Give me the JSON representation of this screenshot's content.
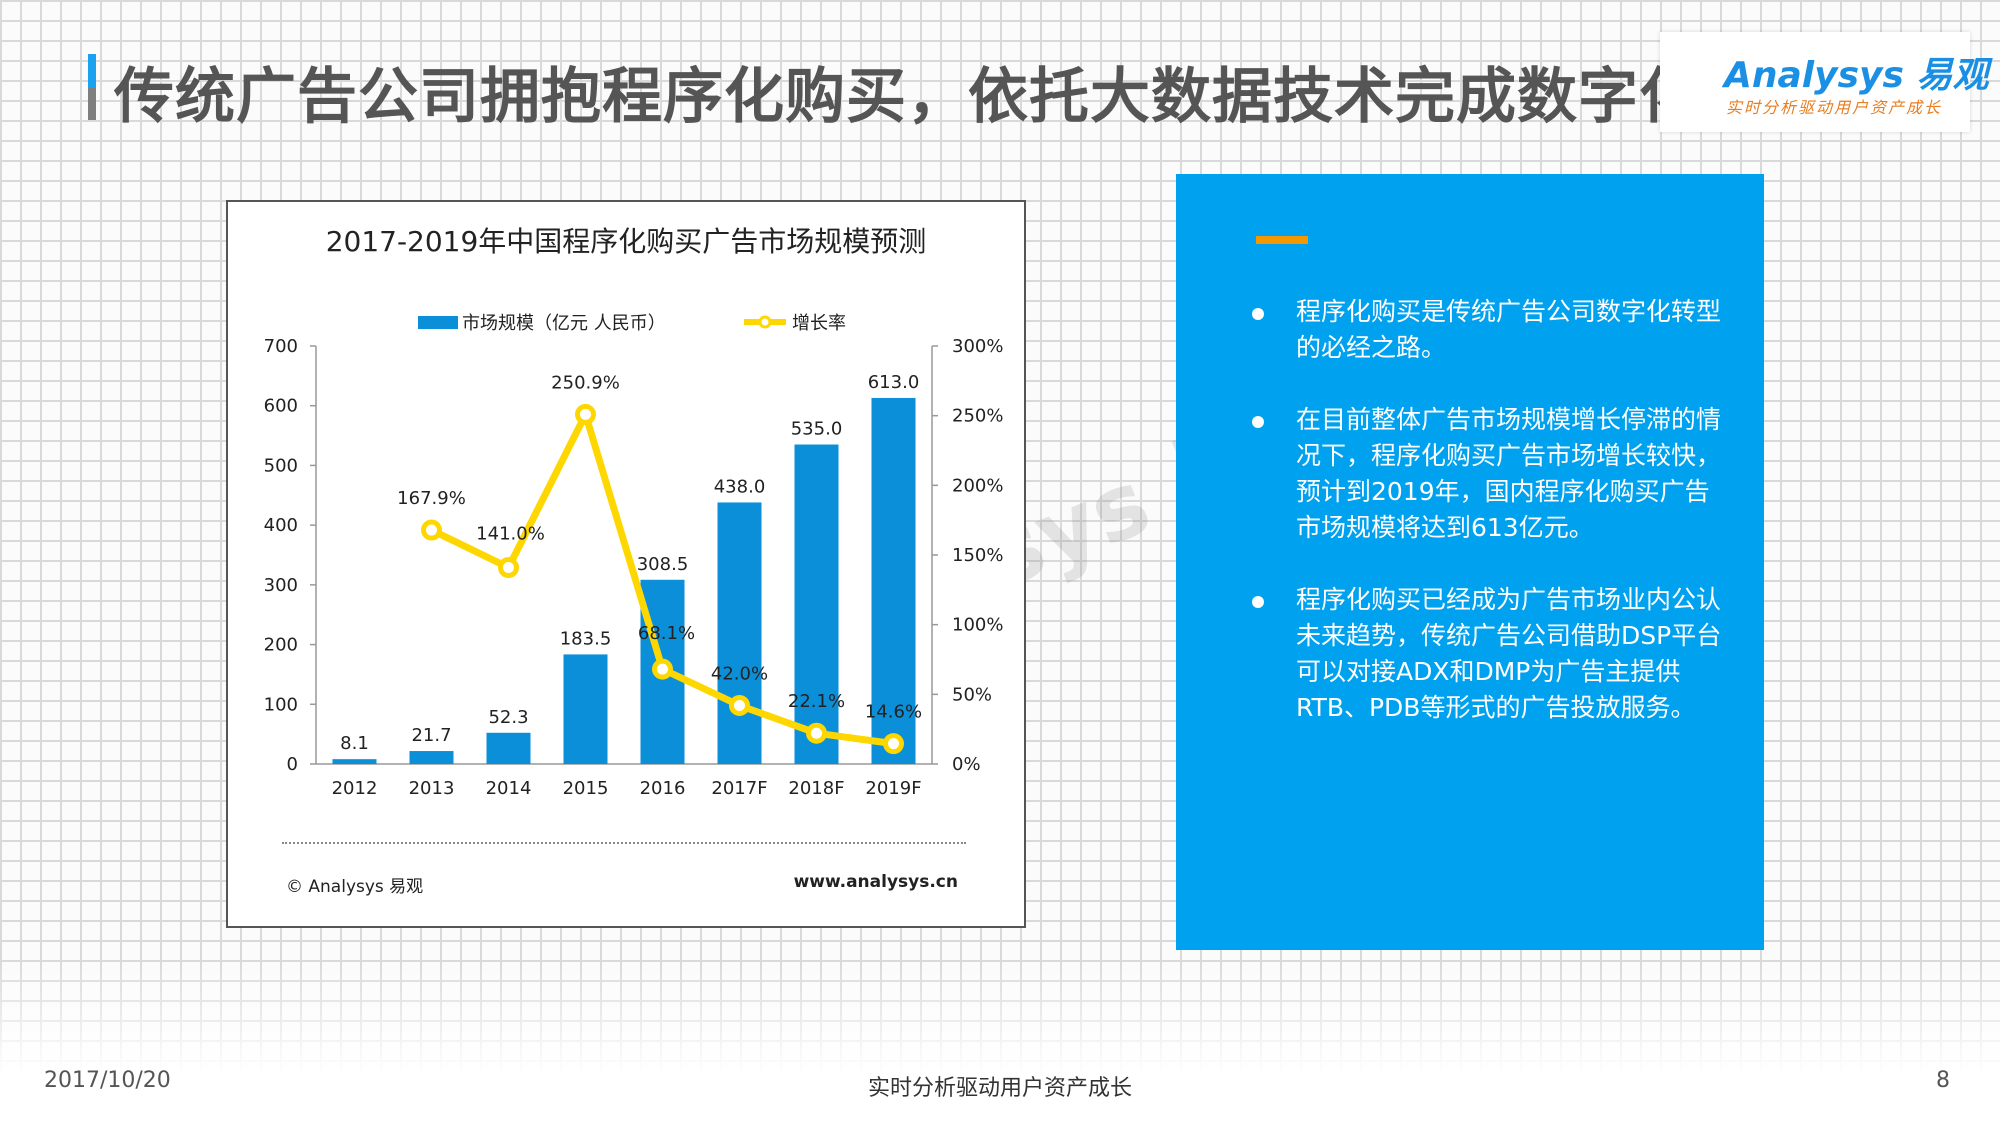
{
  "header": {
    "title": "传统广告公司拥抱程序化购买，依托大数据技术完成数字化转型",
    "logo_text": "Analysys 易观",
    "logo_tagline": "实时分析驱动用户资产成长"
  },
  "chart_data": {
    "type": "bar",
    "title": "2017-2019年中国程序化购买广告市场规模预测",
    "categories": [
      "2012",
      "2013",
      "2014",
      "2015",
      "2016",
      "2017F",
      "2018F",
      "2019F"
    ],
    "series": [
      {
        "name": "市场规模（亿元 人民币）",
        "type": "bar",
        "axis": "left",
        "values": [
          8.1,
          21.7,
          52.3,
          183.5,
          308.5,
          438.0,
          535.0,
          613.0
        ],
        "labels": [
          "8.1",
          "21.7",
          "52.3",
          "183.5",
          "308.5",
          "438.0",
          "535.0",
          "613.0"
        ],
        "color": "#0b8fd9"
      },
      {
        "name": "增长率",
        "type": "line",
        "axis": "right",
        "values": [
          null,
          167.9,
          141.0,
          250.9,
          68.1,
          42.0,
          22.1,
          14.6
        ],
        "labels": [
          "",
          "167.9%",
          "141.0%",
          "250.9%",
          "68.1%",
          "42.0%",
          "22.1%",
          "14.6%"
        ],
        "color": "#ffd700"
      }
    ],
    "ylim_left": [
      0,
      700
    ],
    "yticks_left": [
      "0",
      "100",
      "200",
      "300",
      "400",
      "500",
      "600",
      "700"
    ],
    "ylim_right": [
      0,
      300
    ],
    "yticks_right": [
      "0%",
      "50%",
      "100%",
      "150%",
      "200%",
      "250%",
      "300%"
    ],
    "legend_position": "top",
    "grid": false,
    "copyright": "© Analysys 易观",
    "website": "www.analysys.cn"
  },
  "panel": {
    "accent_color": "#f39800",
    "background": "#00a1ef",
    "bullets": [
      "程序化购买是传统广告公司数字化转型的必经之路。",
      "在目前整体广告市场规模增长停滞的情况下，程序化购买广告市场增长较快，预计到2019年，国内程序化购买广告市场规模将达到613亿元。",
      "程序化购买已经成为广告市场业内公认未来趋势，传统广告公司借助DSP平台可以对接ADX和DMP为广告主提供RTB、PDB等形式的广告投放服务。"
    ]
  },
  "footer": {
    "date": "2017/10/20",
    "slogan": "实时分析驱动用户资产成长",
    "page": "8"
  }
}
